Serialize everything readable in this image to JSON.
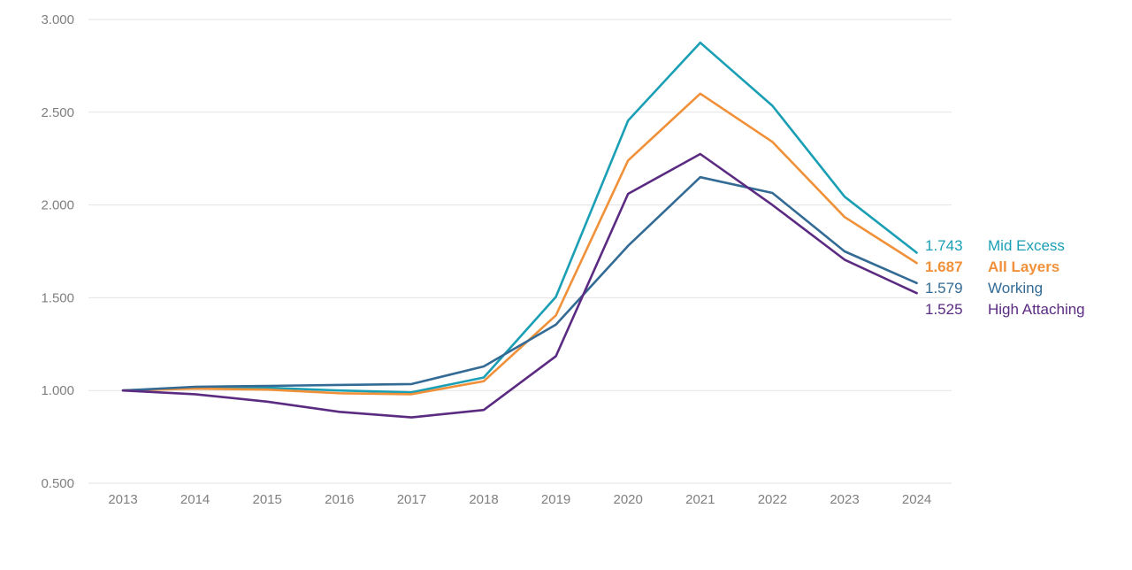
{
  "chart_data": {
    "type": "line",
    "title": "",
    "xlabel": "",
    "ylabel": "",
    "x": [
      "2013",
      "2014",
      "2015",
      "2016",
      "2017",
      "2018",
      "2019",
      "2020",
      "2021",
      "2022",
      "2023",
      "2024"
    ],
    "ylim": [
      0.5,
      3.0
    ],
    "yticks": [
      "0.500",
      "1.000",
      "1.500",
      "2.000",
      "2.500",
      "3.000"
    ],
    "grid": "horizontal",
    "legend": "end-of-line labels",
    "series": [
      {
        "name": "Mid Excess",
        "color": "#1a9fb5",
        "bold": false,
        "end_value": "1.743",
        "values": [
          1.0,
          1.015,
          1.015,
          1.0,
          0.99,
          1.07,
          1.505,
          2.455,
          2.875,
          2.535,
          2.045,
          1.743
        ]
      },
      {
        "name": "All Layers",
        "color": "#f0913a",
        "bold": true,
        "end_value": "1.687",
        "values": [
          1.0,
          1.01,
          1.005,
          0.985,
          0.98,
          1.05,
          1.405,
          2.24,
          2.6,
          2.34,
          1.935,
          1.687
        ]
      },
      {
        "name": "Working",
        "color": "#336b95",
        "bold": false,
        "end_value": "1.579",
        "values": [
          1.0,
          1.02,
          1.025,
          1.03,
          1.035,
          1.13,
          1.355,
          1.78,
          2.15,
          2.065,
          1.75,
          1.579
        ]
      },
      {
        "name": "High Attaching",
        "color": "#5b2b82",
        "bold": false,
        "end_value": "1.525",
        "values": [
          1.0,
          0.98,
          0.94,
          0.885,
          0.855,
          0.895,
          1.185,
          2.06,
          2.275,
          2.0,
          1.705,
          1.525
        ]
      }
    ]
  }
}
